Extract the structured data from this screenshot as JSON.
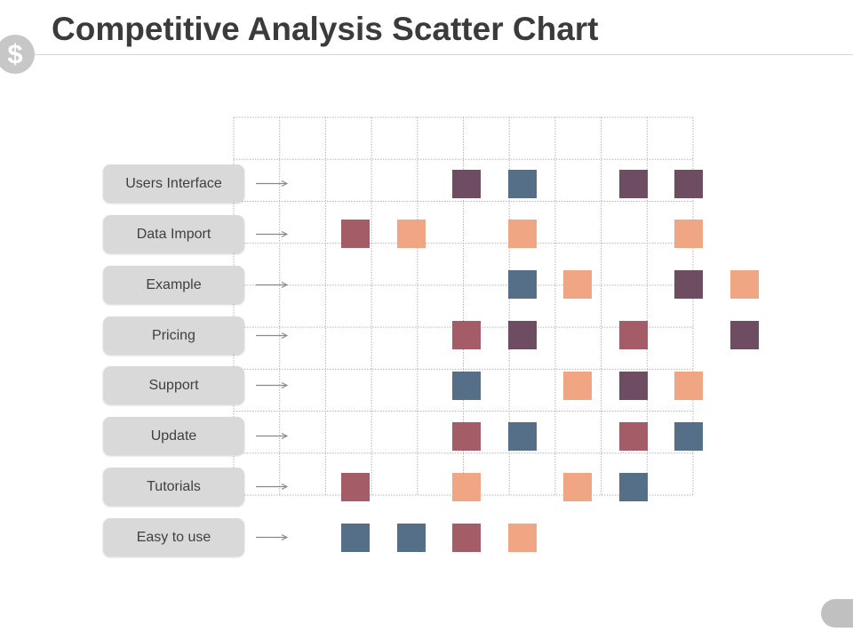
{
  "slide": {
    "logo_icon": "dollar-icon",
    "logo_glyph": "$",
    "arrow_icon": "arrow-right-icon"
  },
  "chart_data": {
    "type": "scatter",
    "title": "Competitive Analysis Scatter Chart",
    "categories": [
      "Users Interface",
      "Data Import",
      "Example",
      "Pricing",
      "Support",
      "Update",
      "Tutorials",
      "Easy to use"
    ],
    "xlim": [
      1,
      8
    ],
    "grid": true,
    "legend": false,
    "series": [
      {
        "color": "#6e4d62",
        "x": [
          [
            3,
            6,
            7
          ],
          [],
          [
            7
          ],
          [
            4,
            8
          ],
          [
            6
          ],
          [],
          [],
          []
        ]
      },
      {
        "color": "#566f88",
        "x": [
          [
            4
          ],
          [],
          [
            4
          ],
          [],
          [
            3
          ],
          [
            4,
            7
          ],
          [
            6
          ],
          [
            1,
            2
          ]
        ]
      },
      {
        "color": "#a45c66",
        "x": [
          [],
          [
            1
          ],
          [],
          [
            3,
            6
          ],
          [],
          [
            3,
            6
          ],
          [
            1
          ],
          [
            3
          ]
        ]
      },
      {
        "color": "#f0a683",
        "x": [
          [],
          [
            2,
            4,
            7
          ],
          [
            5,
            8
          ],
          [],
          [
            5,
            7
          ],
          [],
          [
            3,
            5
          ],
          [
            4
          ]
        ]
      }
    ]
  }
}
